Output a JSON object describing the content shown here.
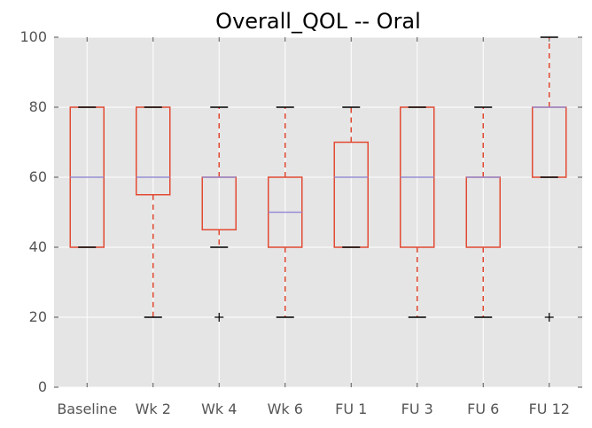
{
  "chart_data": {
    "type": "box",
    "title": "Overall_QOL -- Oral",
    "xlabel": "",
    "ylabel": "",
    "ylim": [
      0,
      100
    ],
    "yticks": [
      0,
      20,
      40,
      60,
      80,
      100
    ],
    "ytick_labels": [
      "0",
      "20",
      "40",
      "60",
      "80",
      "100"
    ],
    "grid": true,
    "categories": [
      "Baseline",
      "Wk 2",
      "Wk 4",
      "Wk 6",
      "FU 1",
      "FU 3",
      "FU 6",
      "FU 12"
    ],
    "boxes": [
      {
        "whislo": 40,
        "q1": 40,
        "med": 60,
        "q3": 80,
        "whishi": 80,
        "fliers": []
      },
      {
        "whislo": 20,
        "q1": 55,
        "med": 60,
        "q3": 80,
        "whishi": 80,
        "fliers": []
      },
      {
        "whislo": 40,
        "q1": 45,
        "med": 60,
        "q3": 60,
        "whishi": 80,
        "fliers": [
          20
        ]
      },
      {
        "whislo": 20,
        "q1": 40,
        "med": 50,
        "q3": 60,
        "whishi": 80,
        "fliers": []
      },
      {
        "whislo": 40,
        "q1": 40,
        "med": 60,
        "q3": 70,
        "whishi": 80,
        "fliers": []
      },
      {
        "whislo": 20,
        "q1": 40,
        "med": 60,
        "q3": 80,
        "whishi": 80,
        "fliers": []
      },
      {
        "whislo": 20,
        "q1": 40,
        "med": 60,
        "q3": 60,
        "whishi": 80,
        "fliers": []
      },
      {
        "whislo": 60,
        "q1": 60,
        "med": 80,
        "q3": 80,
        "whishi": 100,
        "fliers": [
          20
        ]
      }
    ],
    "colors": {
      "plot_background": "#e5e5e5",
      "grid": "#ffffff",
      "box": "#e24a33",
      "whisker": "#e24a33",
      "median": "#988ed5",
      "cap": "#000000",
      "flier": "#000000",
      "tick_text": "#555555"
    }
  }
}
